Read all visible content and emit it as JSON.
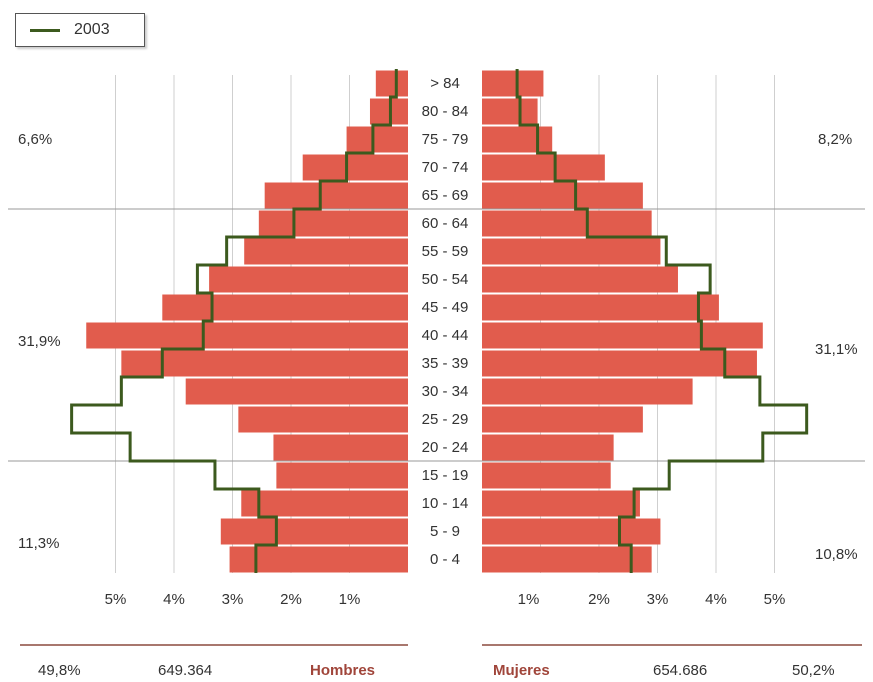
{
  "chart_data": {
    "type": "bar",
    "categories": [
      "0 - 4",
      "5 - 9",
      "10 - 14",
      "15 - 19",
      "20 - 24",
      "25 - 29",
      "30 - 34",
      "35 - 39",
      "40 - 44",
      "45 - 49",
      "50 - 54",
      "55 - 59",
      "60 - 64",
      "65 - 69",
      "70 - 74",
      "75 - 79",
      "80 - 84",
      "> 84"
    ],
    "series": [
      {
        "group": "Hombres",
        "kind": "bars",
        "values": [
          3.05,
          3.2,
          2.85,
          2.25,
          2.3,
          2.9,
          3.8,
          4.9,
          5.5,
          4.2,
          3.4,
          2.8,
          2.55,
          2.45,
          1.8,
          1.05,
          0.65,
          0.55
        ]
      },
      {
        "group": "Mujeres",
        "kind": "bars",
        "values": [
          2.9,
          3.05,
          2.7,
          2.2,
          2.25,
          2.75,
          3.6,
          4.7,
          4.8,
          4.05,
          3.35,
          3.05,
          2.9,
          2.75,
          2.1,
          1.2,
          0.95,
          1.05
        ]
      },
      {
        "name": "2003",
        "group": "Hombres",
        "kind": "line",
        "values": [
          2.6,
          2.25,
          2.55,
          3.3,
          4.75,
          5.75,
          4.9,
          4.2,
          3.5,
          3.35,
          3.6,
          3.1,
          1.95,
          1.5,
          1.05,
          0.6,
          0.3,
          0.2
        ]
      },
      {
        "name": "2003",
        "group": "Mujeres",
        "kind": "line",
        "values": [
          2.55,
          2.35,
          2.6,
          3.2,
          4.8,
          5.55,
          4.75,
          4.15,
          3.75,
          3.7,
          3.9,
          3.15,
          1.8,
          1.6,
          1.25,
          0.95,
          0.65,
          0.6
        ]
      }
    ],
    "xlim": [
      0,
      6
    ],
    "tick_labels_left": [
      "5%",
      "4%",
      "3%",
      "2%",
      "1%"
    ],
    "tick_labels_right": [
      "1%",
      "2%",
      "3%",
      "4%",
      "5%"
    ],
    "legend": {
      "label": "2003",
      "position": "top-left"
    },
    "group_percentages": {
      "left": [
        "6,6%",
        "31,9%",
        "11,3%"
      ],
      "right": [
        "8,2%",
        "31,1%",
        "10,8%"
      ]
    },
    "totals": {
      "hombres_pct": "49,8%",
      "hombres_count": "649.364",
      "hombres_label": "Hombres",
      "mujeres_label": "Mujeres",
      "mujeres_count": "654.686",
      "mujeres_pct": "50,2%"
    },
    "colors": {
      "bar": "#e15c4d",
      "line": "#3c5a1e",
      "grid": "#cfcfcf",
      "rule": "#8b4a3e"
    }
  }
}
